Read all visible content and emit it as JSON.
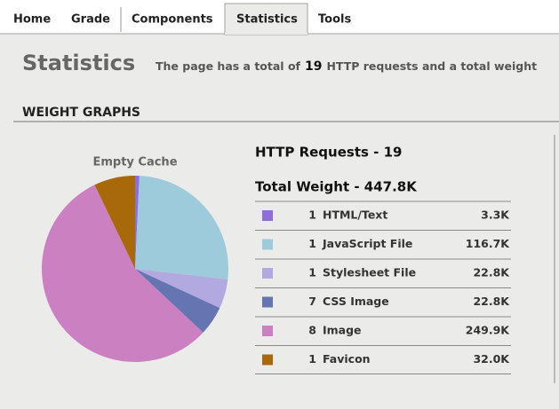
{
  "tabs": [
    "Home",
    "Grade",
    "Components",
    "Statistics",
    "Tools"
  ],
  "heading": "Statistics",
  "summary": [
    "The page has a total of",
    "19",
    "HTTP requests and a total weight"
  ],
  "section_title": "WEIGHT GRAPHS",
  "chart_data": {
    "type": "pie",
    "title": "Empty Cache",
    "requests_label": "HTTP Requests - 19",
    "weight_label": "Total Weight - 447.8K",
    "categories": [
      "HTML/Text",
      "JavaScript File",
      "Stylesheet File",
      "CSS Image",
      "Image",
      "Favicon"
    ],
    "counts": [
      1,
      1,
      1,
      7,
      8,
      1
    ],
    "values": [
      3.3,
      116.7,
      22.8,
      22.8,
      249.9,
      32
    ],
    "value_labels": [
      "3.3K",
      "116.7K",
      "22.8K",
      "22.8K",
      "249.9K",
      "32.0K"
    ],
    "colors": [
      "#8f6ed8",
      "#9ecbdc",
      "#b1a9e0",
      "#6575b1",
      "#cb80c2",
      "#a8690b"
    ]
  }
}
